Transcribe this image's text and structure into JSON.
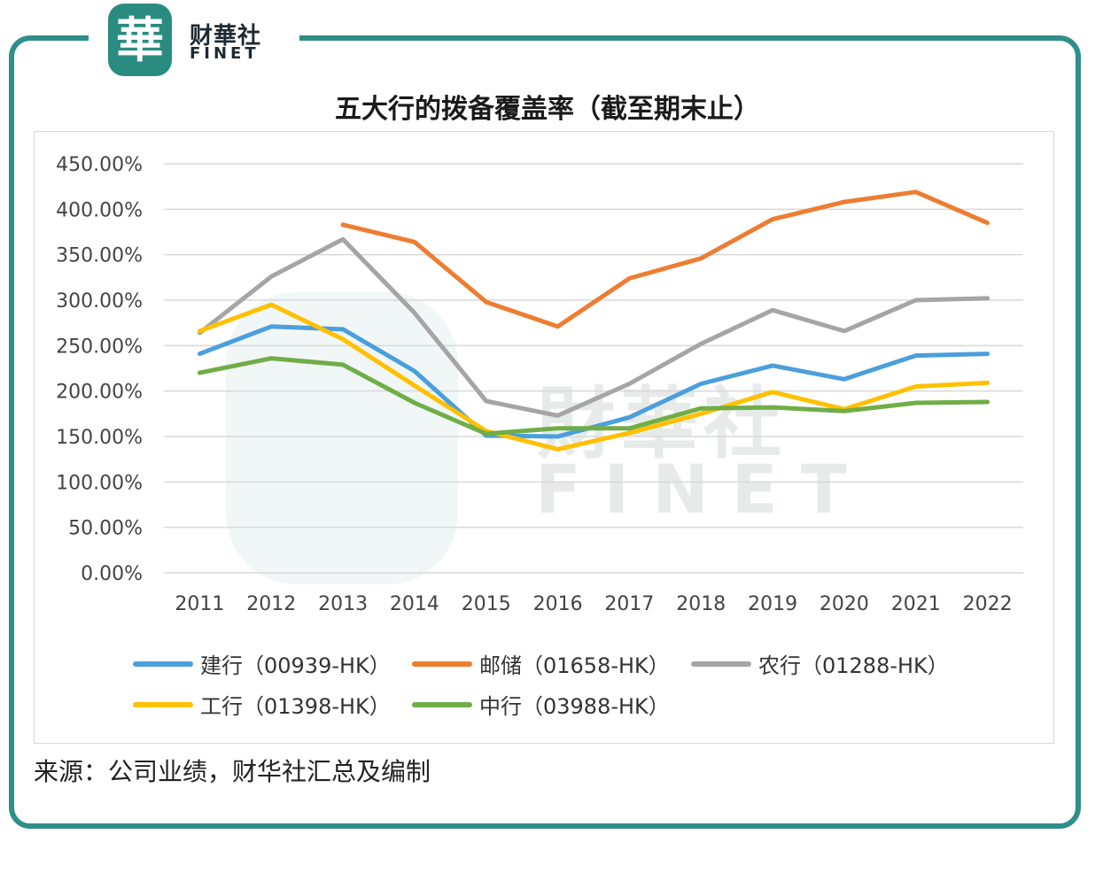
{
  "brand": {
    "badge_char": "華",
    "name_cn": "财華社",
    "name_en": "FINET",
    "watermark_cn": "財華社",
    "watermark_en": "FINET"
  },
  "colors": {
    "frame": "#2f8f8a",
    "grid": "#d9d9d9",
    "axis_text": "#444444"
  },
  "chart_data": {
    "type": "line",
    "title": "五大行的拨备覆盖率（截至期末止）",
    "categories": [
      "2011",
      "2012",
      "2013",
      "2014",
      "2015",
      "2016",
      "2017",
      "2018",
      "2019",
      "2020",
      "2021",
      "2022"
    ],
    "ylim": [
      0,
      450
    ],
    "yticks": [
      0,
      50,
      100,
      150,
      200,
      250,
      300,
      350,
      400,
      450
    ],
    "ytick_labels": [
      "0.00%",
      "50.00%",
      "100.00%",
      "150.00%",
      "200.00%",
      "250.00%",
      "300.00%",
      "350.00%",
      "400.00%",
      "450.00%"
    ],
    "grid": true,
    "legend_position": "bottom",
    "series": [
      {
        "name": "建行（00939-HK）",
        "color": "#4a9fdc",
        "values": [
          241,
          271,
          268,
          222,
          151,
          150,
          171,
          208,
          228,
          213,
          239,
          241
        ]
      },
      {
        "name": "邮储（01658-HK）",
        "color": "#ed7d31",
        "values": [
          null,
          null,
          383,
          364,
          298,
          271,
          324,
          346,
          389,
          408,
          419,
          385
        ]
      },
      {
        "name": "农行（01288-HK）",
        "color": "#a5a5a5",
        "values": [
          264,
          326,
          367,
          286,
          189,
          173,
          208,
          252,
          289,
          266,
          300,
          302
        ]
      },
      {
        "name": "工行（01398-HK）",
        "color": "#ffc000",
        "values": [
          266,
          295,
          257,
          206,
          156,
          136,
          154,
          175,
          199,
          180,
          205,
          209
        ]
      },
      {
        "name": "中行（03988-HK）",
        "color": "#70ad47",
        "values": [
          220,
          236,
          229,
          187,
          153,
          159,
          159,
          181,
          182,
          178,
          187,
          188
        ]
      }
    ]
  },
  "source_note": "来源：公司业绩，财华社汇总及编制"
}
